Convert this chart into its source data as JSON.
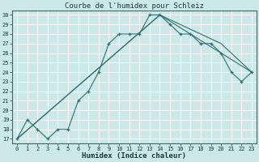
{
  "title": "Courbe de l'humidex pour Schleiz",
  "xlabel": "Humidex (Indice chaleur)",
  "bg_color": "#cce8e8",
  "line_color": "#2d7070",
  "grid_color": "#ffffff",
  "xlim": [
    -0.5,
    23.5
  ],
  "ylim": [
    16.5,
    30.5
  ],
  "xticks": [
    0,
    1,
    2,
    3,
    4,
    5,
    6,
    7,
    8,
    9,
    10,
    11,
    12,
    13,
    14,
    15,
    16,
    17,
    18,
    19,
    20,
    21,
    22,
    23
  ],
  "yticks": [
    17,
    18,
    19,
    20,
    21,
    22,
    23,
    24,
    25,
    26,
    27,
    28,
    29,
    30
  ],
  "series": [
    {
      "x": [
        0,
        1,
        2,
        3,
        4,
        5,
        6,
        7,
        8,
        9,
        10,
        11,
        12,
        13,
        14,
        15,
        16,
        17,
        18,
        19,
        20,
        21,
        22,
        23
      ],
      "y": [
        17,
        19,
        18,
        17,
        18,
        18,
        21,
        22,
        24,
        27,
        28,
        28,
        28,
        30,
        30,
        29,
        28,
        28,
        27,
        27,
        26,
        24,
        23,
        24
      ],
      "marker": true
    },
    {
      "x": [
        0,
        14,
        20,
        23
      ],
      "y": [
        17,
        30,
        27,
        24
      ],
      "marker": false
    },
    {
      "x": [
        0,
        14,
        23
      ],
      "y": [
        17,
        30,
        24
      ],
      "marker": false
    }
  ],
  "title_fontsize": 6.5,
  "tick_fontsize": 5.0,
  "xlabel_fontsize": 6.5
}
